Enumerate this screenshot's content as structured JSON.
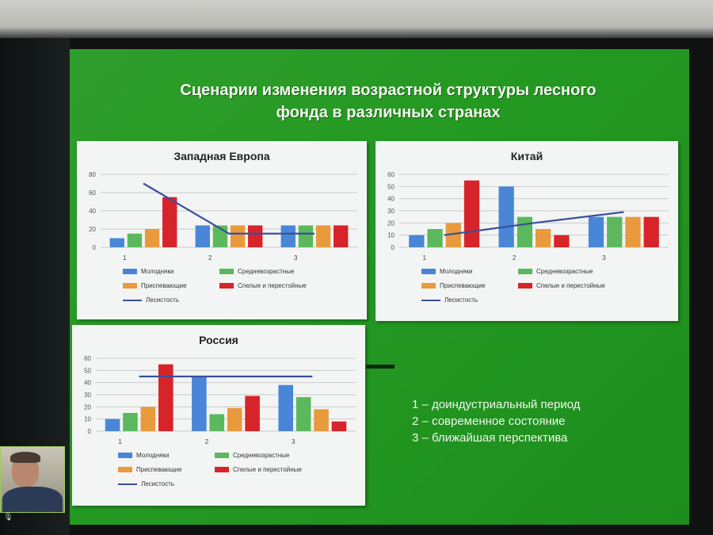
{
  "slide": {
    "title": "Сценарии изменения возрастной структуры лесного\nфонда в различных странах",
    "notes": [
      "1 – доиндустриальный период",
      "2 – современное состояние",
      "3 – ближайшая перспектива"
    ]
  },
  "colors": {
    "slide_green": "#249a22",
    "s1": "#4a86d8",
    "s2": "#5cb85c",
    "s3": "#e89a3c",
    "s4": "#d7232a",
    "line": "#3a4e9a"
  },
  "icons": {
    "webcam": "person-video-icon",
    "mic": "microphone-icon"
  },
  "chart_data": [
    {
      "type": "bar",
      "title": "Западная Европа",
      "categories": [
        "1",
        "2",
        "3"
      ],
      "ylim": [
        0,
        80
      ],
      "yticks": [
        0,
        20,
        40,
        60,
        80
      ],
      "series": [
        {
          "name": "Молодняки",
          "values": [
            10,
            24,
            24
          ]
        },
        {
          "name": "Средневозрастные",
          "values": [
            15,
            24,
            24
          ]
        },
        {
          "name": "Приспевающие",
          "values": [
            20,
            24,
            24
          ]
        },
        {
          "name": "Спелые и перестойные",
          "values": [
            55,
            24,
            24
          ]
        }
      ],
      "line": {
        "name": "Лесистость",
        "values": [
          70,
          15,
          15
        ]
      },
      "legend_position": "bottom"
    },
    {
      "type": "bar",
      "title": "Китай",
      "categories": [
        "1",
        "2",
        "3"
      ],
      "ylim": [
        0,
        60
      ],
      "yticks": [
        0,
        10,
        20,
        30,
        40,
        50,
        60
      ],
      "series": [
        {
          "name": "Молодняки",
          "values": [
            10,
            50,
            25
          ]
        },
        {
          "name": "Средневозрастные",
          "values": [
            15,
            25,
            25
          ]
        },
        {
          "name": "Приспевающие",
          "values": [
            20,
            15,
            25
          ]
        },
        {
          "name": "Спелые и перестойные",
          "values": [
            55,
            10,
            25
          ]
        }
      ],
      "line": {
        "name": "Лесистость",
        "values": [
          10,
          20,
          29
        ]
      },
      "legend_position": "bottom"
    },
    {
      "type": "bar",
      "title": "Россия",
      "categories": [
        "1",
        "2",
        "3"
      ],
      "ylim": [
        0,
        60
      ],
      "yticks": [
        0,
        10,
        20,
        30,
        40,
        50,
        60
      ],
      "series": [
        {
          "name": "Молодняки",
          "values": [
            10,
            45,
            38
          ]
        },
        {
          "name": "Средневозрастные",
          "values": [
            15,
            14,
            28
          ]
        },
        {
          "name": "Приспевающие",
          "values": [
            20,
            19,
            18
          ]
        },
        {
          "name": "Спелые и перестойные",
          "values": [
            55,
            29,
            8
          ]
        }
      ],
      "line": {
        "name": "Лесистость",
        "values": [
          45,
          45,
          45
        ]
      },
      "legend_position": "bottom"
    }
  ]
}
